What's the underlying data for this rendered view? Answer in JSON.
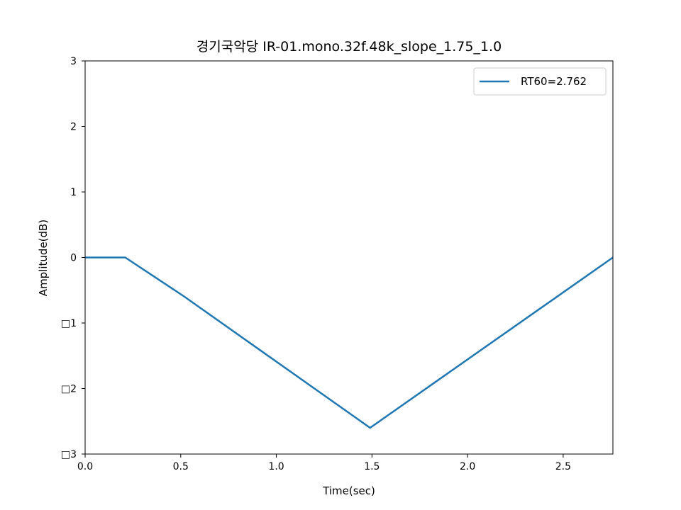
{
  "chart_data": {
    "type": "line",
    "title": "경기국악당 IR-01.mono.32f.48k_slope_1.75_1.0",
    "xlabel": "Time(sec)",
    "ylabel": "Amplitude(dB)",
    "xlim": [
      0,
      2.76
    ],
    "ylim": [
      -3,
      3
    ],
    "xticks": [
      0.0,
      0.5,
      1.0,
      1.5,
      2.0,
      2.5
    ],
    "xtick_labels": [
      "0.0",
      "0.5",
      "1.0",
      "1.5",
      "2.0",
      "2.5"
    ],
    "yticks": [
      3,
      2,
      1,
      0,
      -1,
      -2,
      -3
    ],
    "ytick_labels": [
      "3",
      "2",
      "1",
      "0",
      "□1",
      "□2",
      "□3"
    ],
    "grid": false,
    "legend_position": "top-right",
    "series": [
      {
        "name": "RT60=2.762",
        "color": "#1f77b4",
        "x": [
          0.0,
          0.21,
          0.52,
          1.49,
          2.76
        ],
        "y": [
          0.0,
          0.0,
          -0.6,
          -2.6,
          0.0
        ]
      }
    ]
  }
}
